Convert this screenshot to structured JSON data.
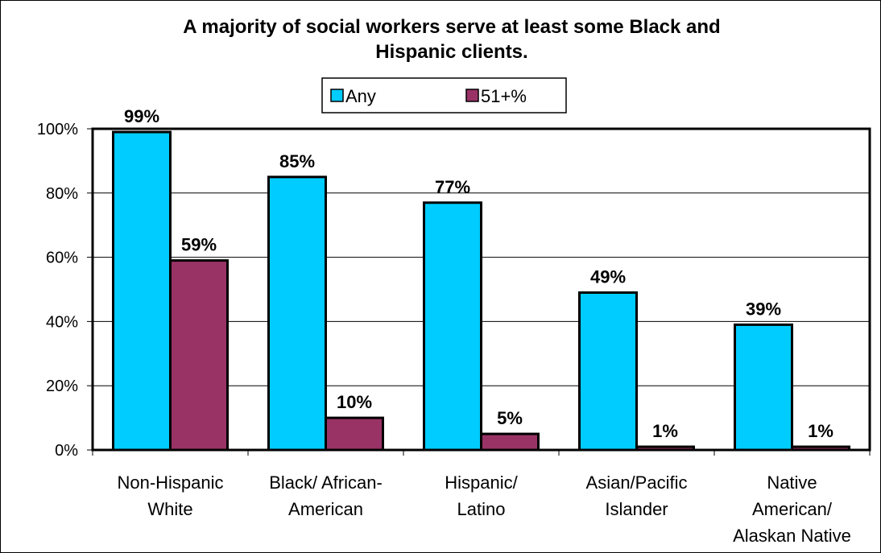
{
  "chart_data": {
    "type": "bar",
    "title": [
      "A majority of social workers serve at least some Black and",
      "Hispanic clients."
    ],
    "categories": [
      [
        "Non-Hispanic",
        "White"
      ],
      [
        "Black/ African-",
        "American"
      ],
      [
        "Hispanic/",
        "Latino"
      ],
      [
        "Asian/Pacific",
        "Islander"
      ],
      [
        "Native",
        "American/",
        "Alaskan Native"
      ]
    ],
    "series": [
      {
        "name": "Any",
        "color": "#00ccff",
        "values": [
          99,
          85,
          77,
          49,
          39
        ],
        "labels": [
          "99%",
          "85%",
          "77%",
          "49%",
          "39%"
        ]
      },
      {
        "name": "51+%",
        "color": "#993366",
        "values": [
          59,
          10,
          5,
          1,
          1
        ],
        "labels": [
          "59%",
          "10%",
          "5%",
          "1%",
          "1%"
        ]
      }
    ],
    "ylim": [
      0,
      100
    ],
    "yticks": [
      "0%",
      "20%",
      "40%",
      "60%",
      "80%",
      "100%"
    ],
    "grid": true,
    "legend_position": "top-center"
  }
}
